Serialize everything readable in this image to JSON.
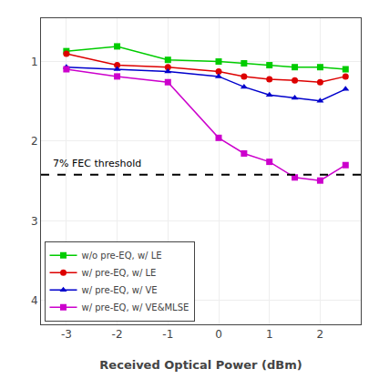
{
  "chart_data": {
    "type": "line",
    "log": "y",
    "x_label": "Received Optical Power (dBm)",
    "x": [
      -3,
      -2,
      -1,
      0,
      0.5,
      1,
      1.5,
      2,
      2.5
    ],
    "series": [
      {
        "name": "w/o pre-EQ, w/ LE",
        "color": "#00cc00",
        "marker": "square",
        "values": [
          0.135,
          0.155,
          0.105,
          0.1,
          0.095,
          0.09,
          0.085,
          0.085,
          0.08
        ]
      },
      {
        "name": "w/ pre-EQ, w/ LE",
        "color": "#dd0000",
        "marker": "circle",
        "values": [
          0.125,
          0.09,
          0.085,
          0.075,
          0.065,
          0.06,
          0.058,
          0.055,
          0.065
        ]
      },
      {
        "name": "w/ pre-EQ, w/ VE",
        "color": "#0000cc",
        "marker": "triangle-up",
        "values": [
          0.085,
          0.08,
          0.075,
          0.065,
          0.048,
          0.038,
          0.035,
          0.032,
          0.045
        ]
      },
      {
        "name": "w/ pre-EQ, w/ VE&MLSE",
        "color": "#cc00cc",
        "marker": "square",
        "values": [
          0.08,
          0.065,
          0.055,
          0.011,
          0.007,
          0.0055,
          0.0035,
          0.0032,
          0.005
        ]
      }
    ],
    "reference_lines": [
      {
        "y": 0.0038,
        "label": "7% FEC threshold",
        "color": "#000000",
        "line_style": "dashed"
      }
    ],
    "xlim": [
      -3.5,
      2.8
    ],
    "xticks": [
      -3,
      -2,
      -1,
      0,
      1,
      2
    ],
    "ylim": [
      5e-05,
      0.35
    ],
    "yticks": [
      {
        "value": 0.1,
        "label": "1"
      },
      {
        "value": 0.01,
        "label": "2"
      },
      {
        "value": 0.001,
        "label": "3"
      },
      {
        "value": 0.0001,
        "label": "4"
      }
    ],
    "grid": true,
    "legend": "lower left"
  }
}
